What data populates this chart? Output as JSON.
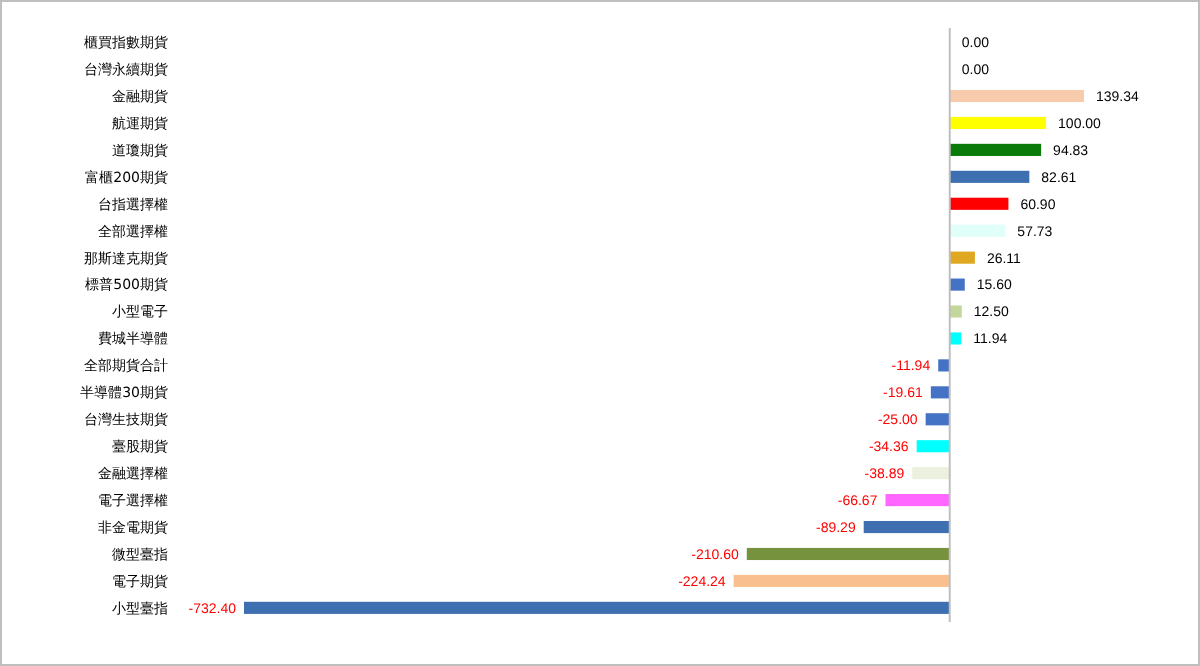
{
  "chart_data": {
    "type": "bar",
    "orientation": "horizontal",
    "categories": [
      "櫃買指數期貨",
      "台灣永續期貨",
      "金融期貨",
      "航運期貨",
      "道瓊期貨",
      "富櫃200期貨",
      "台指選擇權",
      "全部選擇權",
      "那斯達克期貨",
      "標普500期貨",
      "小型電子",
      "費城半導體",
      "全部期貨合計",
      "半導體30期貨",
      "台灣生技期貨",
      "臺股期貨",
      "金融選擇權",
      "電子選擇權",
      "非金電期貨",
      "微型臺指",
      "電子期貨",
      "小型臺指"
    ],
    "values": [
      0,
      0,
      139.34,
      100,
      94.83,
      82.61,
      60.9,
      57.73,
      26.11,
      15.6,
      12.5,
      11.94,
      -11.94,
      -19.61,
      -25,
      -34.36,
      -38.89,
      -66.67,
      -89.29,
      -210.6,
      -224.24,
      -732.4
    ],
    "colors": [
      "#4472c4",
      "#4472c4",
      "#f8cbad",
      "#ffff00",
      "#0a7a0a",
      "#3e6fb0",
      "#ff0000",
      "#e0fff8",
      "#e0a820",
      "#4472c4",
      "#c4d79b",
      "#00ffff",
      "#4472c4",
      "#4472c4",
      "#4472c4",
      "#00ffff",
      "#ebf1de",
      "#ff66ff",
      "#3e6fb0",
      "#76923c",
      "#fabf8f",
      "#3e6fb0"
    ],
    "value_labels": [
      "0.00",
      "0.00",
      "139.34",
      "100.00",
      "94.83",
      "82.61",
      "60.90",
      "57.73",
      "26.11",
      "15.60",
      "12.50",
      "11.94",
      "-11.94",
      "-19.61",
      "-25.00",
      "-34.36",
      "-38.89",
      "-66.67",
      "-89.29",
      "-210.60",
      "-224.24",
      "-732.40"
    ],
    "tick_labels": "y"
  }
}
